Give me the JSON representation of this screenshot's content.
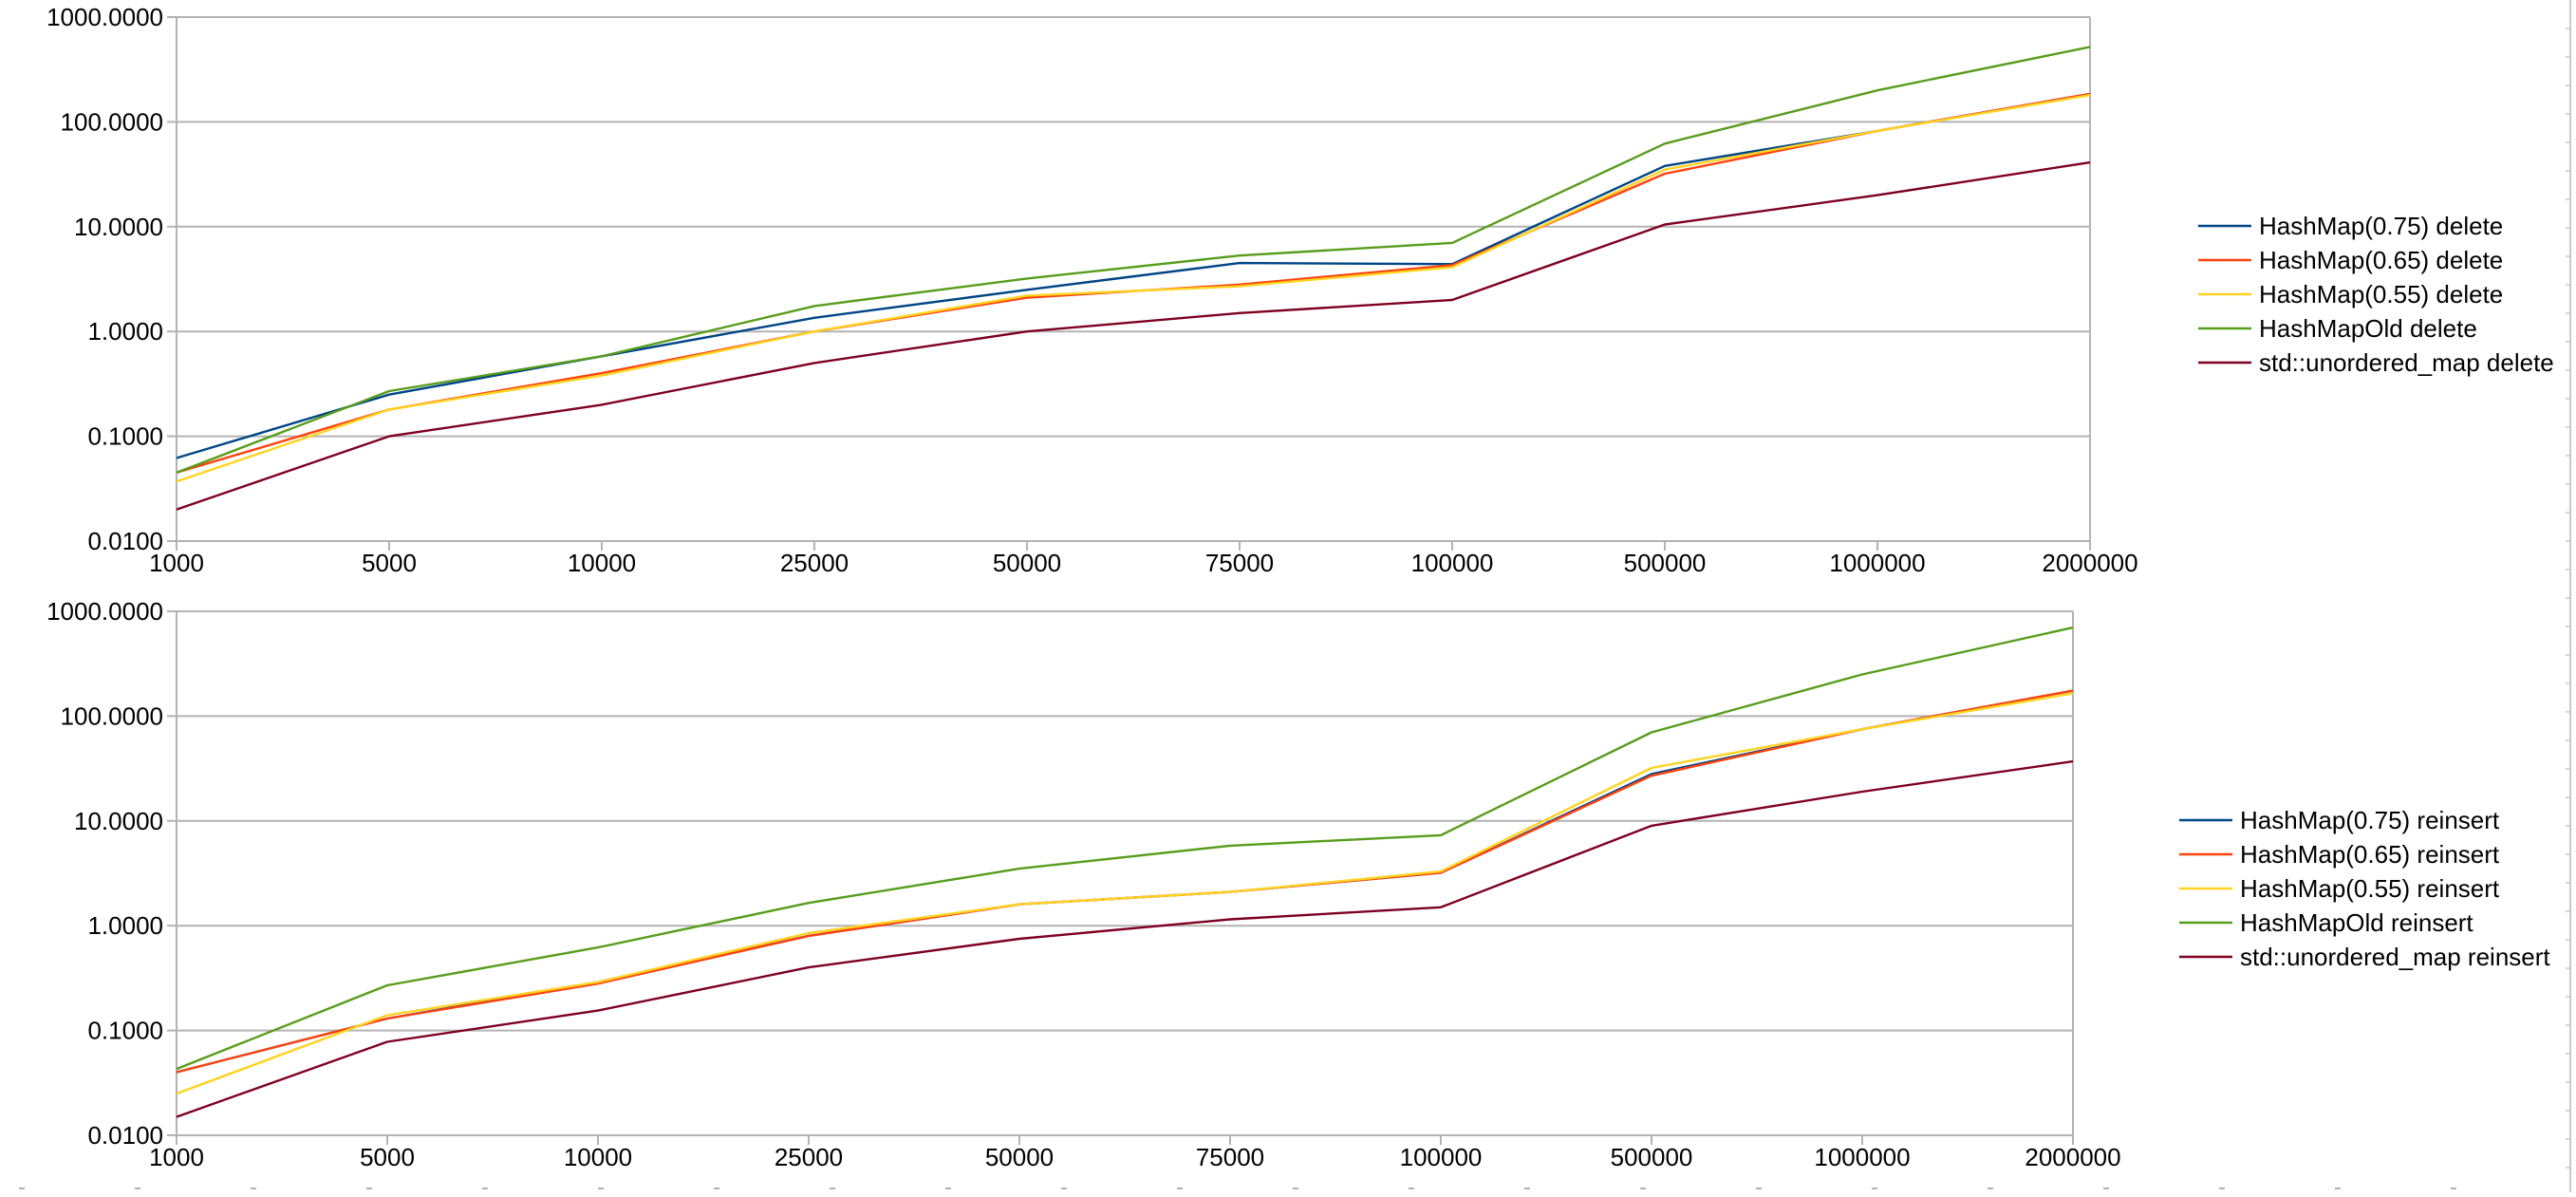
{
  "chart_data": [
    {
      "type": "line",
      "title": "",
      "xlabel": "",
      "ylabel": "",
      "yscale": "log",
      "ylim": [
        0.01,
        1000
      ],
      "yticks": [
        "0.0100",
        "0.1000",
        "1.0000",
        "10.0000",
        "100.0000",
        "1000.0000"
      ],
      "grid": true,
      "legend_position": "right",
      "categories": [
        "1000",
        "5000",
        "10000",
        "25000",
        "50000",
        "75000",
        "100000",
        "500000",
        "1000000",
        "2000000"
      ],
      "series": [
        {
          "name": "HashMap(0.75) delete",
          "color": "#004586",
          "values": [
            0.062,
            0.25,
            0.58,
            1.35,
            2.5,
            4.5,
            4.4,
            38,
            82,
            185
          ]
        },
        {
          "name": "HashMap(0.65) delete",
          "color": "#ff420e",
          "values": [
            0.045,
            0.18,
            0.4,
            1.0,
            2.1,
            2.8,
            4.3,
            32,
            82,
            185
          ]
        },
        {
          "name": "HashMap(0.55) delete",
          "color": "#ffd320",
          "values": [
            0.037,
            0.18,
            0.38,
            1.0,
            2.2,
            2.7,
            4.1,
            35,
            82,
            180
          ]
        },
        {
          "name": "HashMapOld delete",
          "color": "#579d1c",
          "values": [
            0.045,
            0.27,
            0.58,
            1.75,
            3.2,
            5.3,
            7.0,
            62,
            200,
            520
          ]
        },
        {
          "name": "std::unordered_map delete",
          "color": "#7e0021",
          "values": [
            0.02,
            0.1,
            0.2,
            0.5,
            1.0,
            1.5,
            2.0,
            10.5,
            20,
            41
          ]
        }
      ]
    },
    {
      "type": "line",
      "title": "",
      "xlabel": "",
      "ylabel": "",
      "yscale": "log",
      "ylim": [
        0.01,
        1000
      ],
      "yticks": [
        "0.0100",
        "0.1000",
        "1.0000",
        "10.0000",
        "100.0000",
        "1000.0000"
      ],
      "grid": true,
      "legend_position": "right",
      "categories": [
        "1000",
        "5000",
        "10000",
        "25000",
        "50000",
        "75000",
        "100000",
        "500000",
        "1000000",
        "2000000"
      ],
      "series": [
        {
          "name": "HashMap(0.75) reinsert",
          "color": "#004586",
          "values": [
            0.04,
            0.13,
            0.29,
            0.8,
            1.6,
            2.1,
            3.2,
            28,
            75,
            175
          ]
        },
        {
          "name": "HashMap(0.65) reinsert",
          "color": "#ff420e",
          "values": [
            0.04,
            0.13,
            0.28,
            0.8,
            1.6,
            2.1,
            3.2,
            27,
            75,
            175
          ]
        },
        {
          "name": "HashMap(0.55) reinsert",
          "color": "#ffd320",
          "values": [
            0.025,
            0.14,
            0.29,
            0.85,
            1.6,
            2.1,
            3.3,
            32,
            75,
            165
          ]
        },
        {
          "name": "HashMapOld reinsert",
          "color": "#579d1c",
          "values": [
            0.043,
            0.27,
            0.62,
            1.65,
            3.5,
            5.8,
            7.3,
            70,
            250,
            700
          ]
        },
        {
          "name": "std::unordered_map reinsert",
          "color": "#7e0021",
          "values": [
            0.015,
            0.078,
            0.155,
            0.4,
            0.75,
            1.15,
            1.5,
            9.0,
            19,
            37
          ]
        }
      ]
    }
  ]
}
